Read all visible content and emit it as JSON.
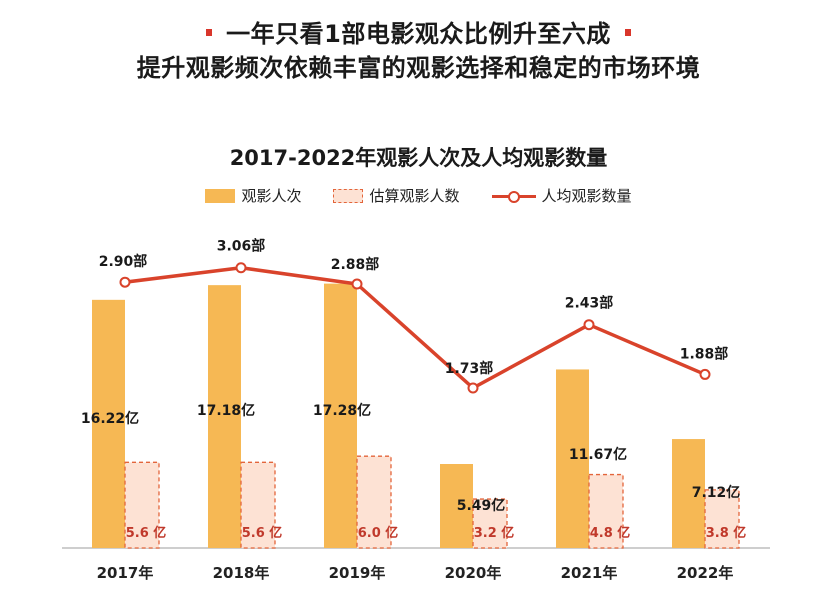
{
  "header": {
    "line1": "一年只看1部电影观众比例升至六成",
    "line2": "提升观影频次依赖丰富的观影选择和稳定的市场环境"
  },
  "chart_data": {
    "type": "bar",
    "title": "2017-2022年观影人次及人均观影数量",
    "categories": [
      "2017年",
      "2018年",
      "2019年",
      "2020年",
      "2021年",
      "2022年"
    ],
    "series": [
      {
        "name": "观影人次",
        "kind": "bar",
        "color": "#f6b854",
        "values": [
          16.22,
          17.18,
          17.28,
          5.49,
          11.67,
          7.12
        ],
        "labels": [
          "16.22亿",
          "17.18亿",
          "17.28亿",
          "5.49亿",
          "11.67亿",
          "7.12亿"
        ]
      },
      {
        "name": "估算观影人数",
        "kind": "bar-dashed",
        "color": "#fde2d4",
        "values": [
          5.6,
          5.6,
          6.0,
          3.2,
          4.8,
          3.8
        ],
        "labels": [
          "5.6 亿",
          "5.6 亿",
          "6.0 亿",
          "3.2 亿",
          "4.8 亿",
          "3.8 亿"
        ]
      },
      {
        "name": "人均观影数量",
        "kind": "line",
        "color": "#d9432b",
        "values": [
          2.9,
          3.06,
          2.88,
          1.73,
          2.43,
          1.88
        ],
        "labels": [
          "2.90部",
          "3.06部",
          "2.88部",
          "1.73部",
          "2.43部",
          "1.88部"
        ]
      }
    ],
    "legend_position": "top-center",
    "grid": false
  }
}
